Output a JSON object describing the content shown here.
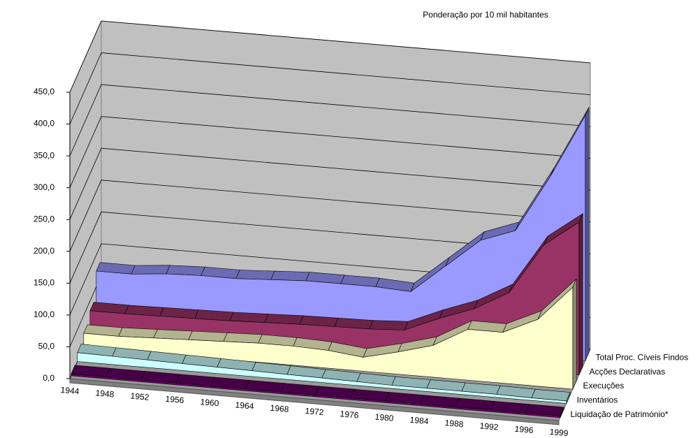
{
  "chart_data": {
    "type": "area3d",
    "title": "Ponderação por 10 mil habitantes",
    "categories": [
      "1944",
      "1948",
      "1952",
      "1956",
      "1960",
      "1964",
      "1968",
      "1972",
      "1976",
      "1980",
      "1984",
      "1988",
      "1992",
      "1996",
      "1999"
    ],
    "series": [
      {
        "name": "Total Proc. Cíveis Findos",
        "color": "#9999ff",
        "values": [
          75,
          75,
          80,
          82,
          82,
          85,
          88,
          88,
          88,
          85,
          130,
          175,
          195,
          285,
          385
        ]
      },
      {
        "name": "Acções Declarativas",
        "color": "#993366",
        "values": [
          35,
          35,
          36,
          37,
          38,
          40,
          42,
          43,
          44,
          47,
          70,
          90,
          120,
          200,
          240
        ]
      },
      {
        "name": "Execuções",
        "color": "#ffffcc",
        "values": [
          22,
          22,
          24,
          26,
          28,
          30,
          30,
          28,
          22,
          35,
          50,
          80,
          80,
          105,
          160
        ]
      },
      {
        "name": "Inventários",
        "color": "#ccffff",
        "values": [
          14,
          13,
          12,
          11,
          10,
          9,
          8,
          7,
          6,
          5,
          5,
          5,
          5,
          4,
          4
        ]
      },
      {
        "name": "Liquidação  de Património*",
        "color": "#660066",
        "values": [
          3,
          3,
          3,
          3,
          3,
          3,
          3,
          3,
          3,
          3,
          3,
          3,
          3,
          3,
          3
        ]
      }
    ],
    "ylim": [
      0,
      450
    ],
    "yticks": [
      {
        "value": 0,
        "label": "0,0"
      },
      {
        "value": 50,
        "label": "50,0"
      },
      {
        "value": 100,
        "label": "100,0"
      },
      {
        "value": 150,
        "label": "150,0"
      },
      {
        "value": 200,
        "label": "200,0"
      },
      {
        "value": 250,
        "label": "250,0"
      },
      {
        "value": 300,
        "label": "300,0"
      },
      {
        "value": 350,
        "label": "350,0"
      },
      {
        "value": 400,
        "label": "400,0"
      },
      {
        "value": 450,
        "label": "450,0"
      }
    ],
    "grid": true
  }
}
